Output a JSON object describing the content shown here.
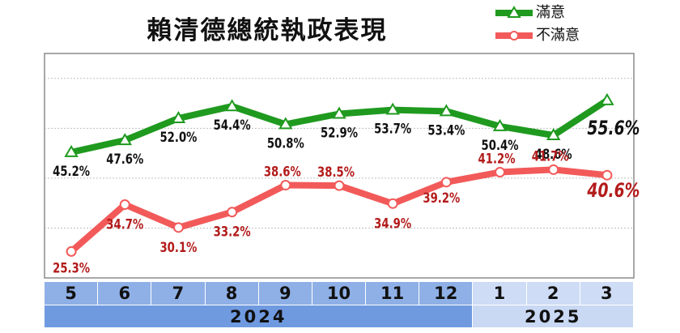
{
  "chart_data": {
    "type": "line",
    "title": "賴清德總統執政表現",
    "categories": [
      "5",
      "6",
      "7",
      "8",
      "9",
      "10",
      "11",
      "12",
      "1",
      "2",
      "3"
    ],
    "years": [
      {
        "label": "2024",
        "months": 8
      },
      {
        "label": "2025",
        "months": 3
      }
    ],
    "series": [
      {
        "name": "滿意",
        "color": "#1f9a1f",
        "marker": "triangle",
        "values": [
          45.2,
          47.6,
          52.0,
          54.4,
          50.8,
          52.9,
          53.7,
          53.4,
          50.4,
          48.6,
          55.6
        ],
        "labels": [
          "45.2%",
          "47.6%",
          "52.0%",
          "54.4%",
          "50.8%",
          "52.9%",
          "53.7%",
          "53.4%",
          "50.4%",
          "48.6%",
          "55.6%"
        ]
      },
      {
        "name": "不滿意",
        "color": "#f25a5a",
        "marker": "circle",
        "values": [
          25.3,
          34.7,
          30.1,
          33.2,
          38.6,
          38.5,
          34.9,
          39.2,
          41.2,
          41.7,
          40.6
        ],
        "labels": [
          "25.3%",
          "34.7%",
          "30.1%",
          "33.2%",
          "38.6%",
          "38.5%",
          "34.9%",
          "39.2%",
          "41.2%",
          "41.7%",
          "40.6%"
        ]
      }
    ],
    "colors": {
      "month_cell_2024": "#8fb0e6",
      "month_cell_2025": "#cfdcf5",
      "year_cell_2024": "#6f9ae0",
      "year_cell_2025": "#c9d8f3",
      "satisfied_label": "#111111",
      "dissatisfied_label": "#b31b1b",
      "gridline": "#c0c0c0",
      "plot_border": "#8a8a8a"
    },
    "grid": true,
    "legend": "top-right",
    "ylim": [
      20,
      65
    ]
  }
}
